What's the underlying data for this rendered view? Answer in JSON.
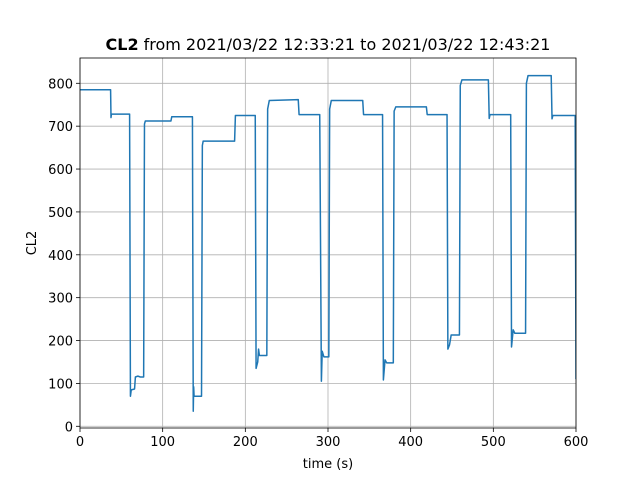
{
  "chart_data": {
    "type": "line",
    "title_bold": "CL2",
    "title": "from 2021/03/22 12:33:21 to 2021/03/22 12:43:21",
    "x_label": "time (s)",
    "y_label": "CL2",
    "x": [
      0,
      37,
      37.5,
      38,
      60,
      61,
      62,
      66,
      67,
      70,
      73,
      77,
      78,
      79,
      110,
      111,
      136,
      137,
      137.5,
      138,
      147,
      148,
      149,
      187,
      188,
      212,
      213,
      215,
      216,
      217,
      226,
      227,
      229,
      264,
      265,
      290,
      292,
      293,
      295,
      301,
      302,
      304,
      342,
      343,
      366,
      367,
      369,
      371,
      379,
      380,
      382,
      419,
      420,
      444,
      445,
      447,
      449,
      459,
      460,
      462,
      494,
      495,
      496,
      521,
      522,
      524,
      526,
      539,
      540,
      542,
      570,
      571,
      572,
      597,
      599,
      600
    ],
    "values": [
      785,
      785,
      720,
      728,
      728,
      70,
      85,
      87,
      115,
      117,
      115,
      115,
      705,
      712,
      712,
      722,
      722,
      35,
      92,
      70,
      70,
      655,
      665,
      665,
      725,
      725,
      135,
      150,
      180,
      165,
      165,
      740,
      760,
      762,
      727,
      727,
      105,
      175,
      162,
      162,
      740,
      760,
      760,
      727,
      727,
      108,
      155,
      148,
      148,
      735,
      745,
      745,
      727,
      727,
      180,
      190,
      213,
      213,
      795,
      808,
      808,
      718,
      727,
      727,
      185,
      225,
      217,
      217,
      800,
      818,
      818,
      717,
      725,
      725,
      725,
      110
    ],
    "color": "#1f77b4",
    "xlim": [
      0,
      600
    ],
    "xticks": [
      0,
      100,
      200,
      300,
      400,
      500,
      600
    ],
    "ylim": [
      -4,
      859
    ],
    "yticks": [
      0,
      100,
      200,
      300,
      400,
      500,
      600,
      700,
      800
    ],
    "grid": true
  }
}
